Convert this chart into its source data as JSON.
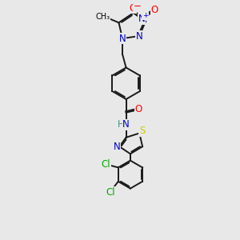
{
  "background_color": "#e8e8e8",
  "atom_colors": {
    "C": "#000000",
    "N": "#0000cc",
    "O": "#ff0000",
    "S": "#cccc00",
    "H": "#4a9090",
    "Cl": "#00aa00"
  },
  "bond_color": "#1a1a1a",
  "bond_width": 1.4,
  "font_size_atom": 8.5,
  "font_size_small": 7.5
}
